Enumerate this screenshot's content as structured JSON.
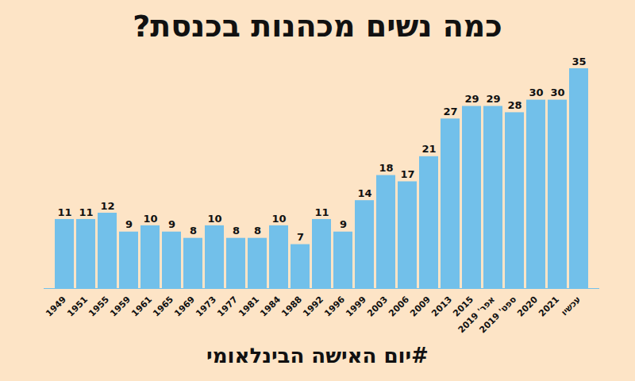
{
  "chart_data": {
    "type": "bar",
    "title": "כמה נשים מכהנות בכנסת?",
    "annotations": [
      "#יום האישה הבינלאומי"
    ],
    "categories": [
      "1949",
      "1951",
      "1955",
      "1959",
      "1961",
      "1965",
      "1969",
      "1973",
      "1977",
      "1981",
      "1984",
      "1988",
      "1992",
      "1996",
      "1999",
      "2003",
      "2006",
      "2009",
      "2013",
      "2015",
      "אפר' 2019",
      "ספט' 2019",
      "2020",
      "2021",
      "עכשיו"
    ],
    "values": [
      11,
      11,
      12,
      9,
      10,
      9,
      8,
      10,
      8,
      8,
      10,
      7,
      11,
      9,
      14,
      18,
      17,
      21,
      27,
      29,
      29,
      28,
      30,
      30,
      35
    ],
    "color": "#72c0ea",
    "ylim": [
      0,
      35
    ],
    "data_labels": true,
    "tick_labels": "x",
    "grid": false
  }
}
